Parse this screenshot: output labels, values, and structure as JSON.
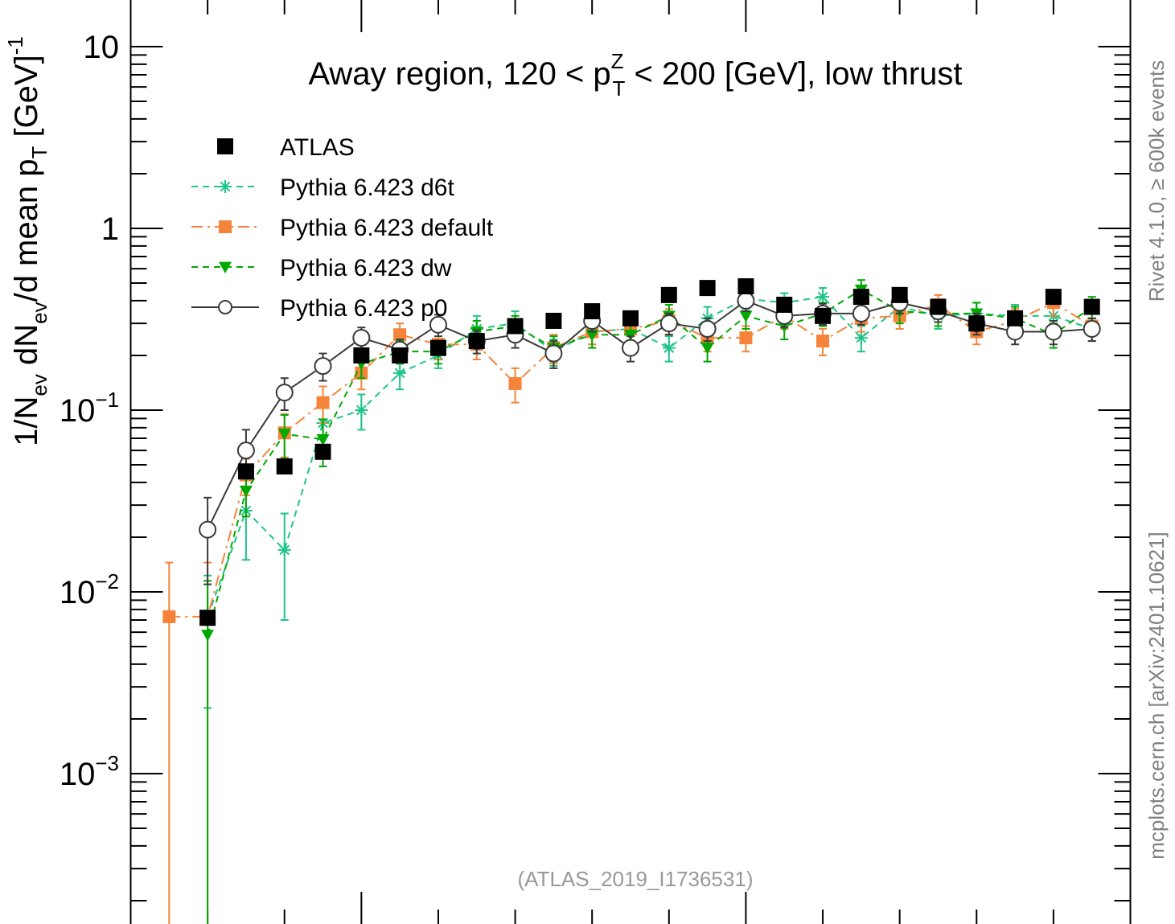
{
  "chart_data": {
    "type": "scatter",
    "title": "Away region, 120 < p",
    "title_sup": "Z",
    "title_sub": "T",
    "title_rest": " < 200 [GeV], low thrust",
    "ylabel": "1/N",
    "ylabel_parts": [
      "1/N",
      "ev",
      " dN",
      "ev",
      "/d mean p",
      "T",
      " [GeV]",
      "-1"
    ],
    "y_scale": "log",
    "ylim": [
      0.0002,
      16
    ],
    "xlim": [
      0,
      13
    ],
    "y_ticks": [
      {
        "value": 10,
        "base": "10",
        "exp": ""
      },
      {
        "value": 1,
        "base": "1",
        "exp": ""
      },
      {
        "value": 0.1,
        "base": "10",
        "exp": "−1"
      },
      {
        "value": 0.01,
        "base": "10",
        "exp": "−2"
      },
      {
        "value": 0.001,
        "base": "10",
        "exp": "−3"
      }
    ],
    "x_major_ticks": [
      3,
      8
    ],
    "x_minor_ticks": [
      1,
      2,
      4,
      5,
      6,
      7,
      9,
      10,
      11,
      12
    ],
    "annotation": "(ATLAS_2019_I1736531)",
    "side_label_top": "Rivet 4.1.0, ≥ 600k events",
    "side_label_bottom": "mcplots.cern.ch [arXiv:2401.10621]",
    "legend_position": "top-left",
    "series": [
      {
        "name": "ATLAS",
        "color": "#000000",
        "marker": "square",
        "line": "none",
        "x": [
          1.0,
          1.5,
          2.0,
          2.5,
          3.0,
          3.5,
          4.0,
          4.5,
          5.0,
          5.5,
          6.0,
          6.5,
          7.0,
          7.5,
          8.0,
          8.5,
          9.0,
          9.5,
          10.0,
          10.5,
          11.0,
          11.5,
          12.0,
          12.5
        ],
        "y": [
          0.0072,
          0.046,
          0.049,
          0.059,
          0.2,
          0.2,
          0.22,
          0.24,
          0.29,
          0.31,
          0.35,
          0.32,
          0.43,
          0.47,
          0.48,
          0.38,
          0.33,
          0.42,
          0.43,
          0.37,
          0.3,
          0.32,
          0.42,
          0.37
        ]
      },
      {
        "name": "Pythia 6.423 d6t",
        "color": "#1ec489",
        "marker": "star",
        "line": "dashed",
        "x": [
          1.0,
          1.5,
          2.0,
          2.5,
          3.0,
          3.5,
          4.0,
          4.5,
          5.0,
          5.5,
          6.0,
          6.5,
          7.0,
          7.5,
          8.0,
          8.5,
          9.0,
          9.5,
          10.0,
          10.5,
          11.0,
          11.5,
          12.0,
          12.5
        ],
        "y": [
          0.0073,
          0.028,
          0.017,
          0.085,
          0.1,
          0.16,
          0.2,
          0.28,
          0.3,
          0.21,
          0.27,
          0.28,
          0.22,
          0.32,
          0.41,
          0.39,
          0.42,
          0.25,
          0.37,
          0.33,
          0.34,
          0.33,
          0.33,
          0.28
        ],
        "err": [
          0.005,
          0.013,
          0.01,
          0.025,
          0.022,
          0.03,
          0.03,
          0.05,
          0.05,
          0.035,
          0.04,
          0.04,
          0.035,
          0.05,
          0.05,
          0.05,
          0.05,
          0.04,
          0.05,
          0.05,
          0.05,
          0.05,
          0.05,
          0.04
        ]
      },
      {
        "name": "Pythia 6.423 default",
        "color": "#f5843a",
        "marker": "square",
        "line": "dashdot",
        "x": [
          0.5,
          1.0,
          1.5,
          2.0,
          2.5,
          3.0,
          3.5,
          4.0,
          4.5,
          5.0,
          5.5,
          6.0,
          6.5,
          7.0,
          7.5,
          8.0,
          8.5,
          9.0,
          9.5,
          10.0,
          10.5,
          11.0,
          11.5,
          12.0,
          12.5
        ],
        "y": [
          0.0073,
          0.0073,
          0.044,
          0.075,
          0.11,
          0.16,
          0.26,
          0.23,
          0.23,
          0.14,
          0.22,
          0.27,
          0.28,
          0.31,
          0.25,
          0.25,
          0.33,
          0.24,
          0.32,
          0.33,
          0.38,
          0.27,
          0.31,
          0.39,
          0.29
        ],
        "err": [
          0.0072,
          0.0072,
          0.01,
          0.02,
          0.025,
          0.03,
          0.04,
          0.04,
          0.04,
          0.03,
          0.04,
          0.04,
          0.04,
          0.05,
          0.04,
          0.04,
          0.05,
          0.04,
          0.05,
          0.05,
          0.05,
          0.04,
          0.05,
          0.06,
          0.05
        ]
      },
      {
        "name": "Pythia 6.423 dw",
        "color": "#00a800",
        "marker": "triangle-down",
        "line": "dashed",
        "x": [
          1.0,
          1.5,
          2.0,
          2.5,
          3.0,
          3.5,
          4.0,
          4.5,
          5.0,
          5.5,
          6.0,
          6.5,
          7.0,
          7.5,
          8.0,
          8.5,
          9.0,
          9.5,
          10.0,
          10.5,
          11.0,
          11.5,
          12.0,
          12.5
        ],
        "y": [
          0.0058,
          0.036,
          0.074,
          0.069,
          0.18,
          0.21,
          0.21,
          0.27,
          0.29,
          0.22,
          0.26,
          0.26,
          0.33,
          0.22,
          0.33,
          0.29,
          0.34,
          0.46,
          0.35,
          0.34,
          0.34,
          0.32,
          0.26,
          0.37
        ],
        "err": [
          0.0057,
          0.01,
          0.02,
          0.02,
          0.03,
          0.03,
          0.03,
          0.04,
          0.04,
          0.035,
          0.04,
          0.04,
          0.05,
          0.035,
          0.05,
          0.045,
          0.05,
          0.06,
          0.05,
          0.05,
          0.05,
          0.05,
          0.04,
          0.05
        ]
      },
      {
        "name": "Pythia 6.423 p0",
        "color": "#3a3a3a",
        "marker": "circle-open",
        "line": "solid",
        "x": [
          1.0,
          1.5,
          2.0,
          2.5,
          3.0,
          3.5,
          4.0,
          4.5,
          5.0,
          5.5,
          6.0,
          6.5,
          7.0,
          7.5,
          8.0,
          8.5,
          9.0,
          9.5,
          10.0,
          10.5,
          11.0,
          11.5,
          12.0,
          12.5
        ],
        "y": [
          0.022,
          0.06,
          0.125,
          0.175,
          0.25,
          0.215,
          0.295,
          0.24,
          0.26,
          0.205,
          0.31,
          0.22,
          0.3,
          0.28,
          0.4,
          0.33,
          0.34,
          0.34,
          0.39,
          0.35,
          0.3,
          0.27,
          0.27,
          0.28
        ],
        "err": [
          0.011,
          0.018,
          0.025,
          0.03,
          0.035,
          0.03,
          0.04,
          0.035,
          0.04,
          0.035,
          0.04,
          0.035,
          0.04,
          0.04,
          0.05,
          0.045,
          0.045,
          0.045,
          0.05,
          0.045,
          0.04,
          0.04,
          0.04,
          0.04
        ]
      }
    ]
  }
}
